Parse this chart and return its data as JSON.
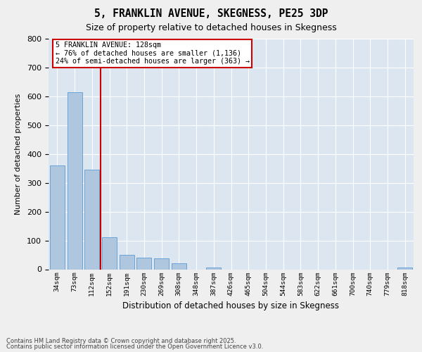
{
  "title_line1": "5, FRANKLIN AVENUE, SKEGNESS, PE25 3DP",
  "title_line2": "Size of property relative to detached houses in Skegness",
  "xlabel": "Distribution of detached houses by size in Skegness",
  "ylabel": "Number of detached properties",
  "footer_line1": "Contains HM Land Registry data © Crown copyright and database right 2025.",
  "footer_line2": "Contains public sector information licensed under the Open Government Licence v3.0.",
  "categories": [
    "34sqm",
    "73sqm",
    "112sqm",
    "152sqm",
    "191sqm",
    "230sqm",
    "269sqm",
    "308sqm",
    "348sqm",
    "387sqm",
    "426sqm",
    "465sqm",
    "504sqm",
    "544sqm",
    "583sqm",
    "622sqm",
    "661sqm",
    "700sqm",
    "740sqm",
    "779sqm",
    "818sqm"
  ],
  "values": [
    360,
    615,
    345,
    110,
    50,
    40,
    37,
    20,
    0,
    5,
    0,
    0,
    0,
    0,
    0,
    0,
    0,
    0,
    0,
    0,
    5
  ],
  "bar_color": "#aec6de",
  "bar_edge_color": "#5b9bd5",
  "bg_color": "#dce6f1",
  "grid_color": "#ffffff",
  "vline_color": "#cc0000",
  "vline_x": 2.5,
  "annotation_text": "5 FRANKLIN AVENUE: 128sqm\n← 76% of detached houses are smaller (1,136)\n24% of semi-detached houses are larger (363) →",
  "ann_box_fc": "#ffffff",
  "ann_box_ec": "#cc0000",
  "ylim": [
    0,
    800
  ],
  "yticks": [
    0,
    100,
    200,
    300,
    400,
    500,
    600,
    700,
    800
  ],
  "fig_bg": "#efefef"
}
